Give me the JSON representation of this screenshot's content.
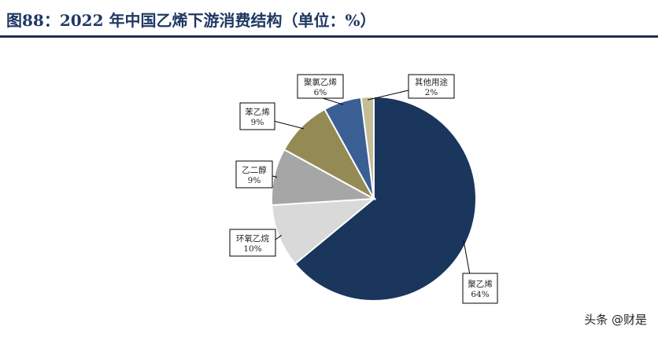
{
  "figure": {
    "title": "图88：2022 年中国乙烯下游消费结构（单位：%）"
  },
  "watermark": "头条 @财是",
  "chart_data": {
    "type": "pie",
    "title": "",
    "unit": "%",
    "start_angle_deg": 0,
    "direction": "clockwise",
    "slices": [
      {
        "label": "聚乙烯",
        "value": 64,
        "display": "64%",
        "color": "#1a365d"
      },
      {
        "label": "环氧乙烷",
        "value": 10,
        "display": "10%",
        "color": "#d9d9d9"
      },
      {
        "label": "乙二醇",
        "value": 9,
        "display": "9%",
        "color": "#a6a6a6"
      },
      {
        "label": "苯乙烯",
        "value": 9,
        "display": "9%",
        "color": "#948a54"
      },
      {
        "label": "聚氯乙烯",
        "value": 6,
        "display": "6%",
        "color": "#3a5f95"
      },
      {
        "label": "其他用途",
        "value": 2,
        "display": "2%",
        "color": "#c4bd97"
      }
    ]
  }
}
